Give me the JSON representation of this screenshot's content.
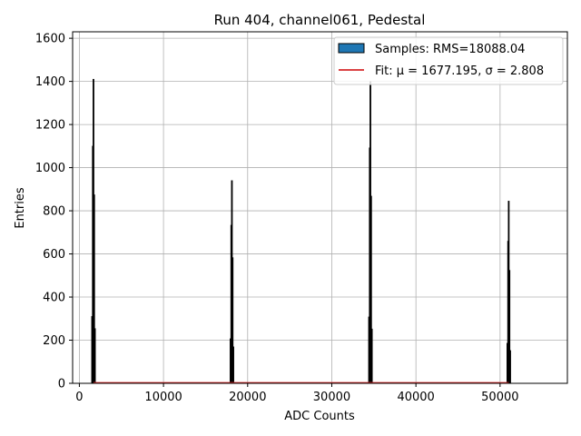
{
  "chart_data": {
    "type": "bar",
    "title": "Run 404, channel061, Pedestal",
    "xlabel": "ADC Counts",
    "ylabel": "Entries",
    "xlim": [
      -800,
      58000
    ],
    "ylim": [
      0,
      1630
    ],
    "xticks": [
      0,
      10000,
      20000,
      30000,
      40000,
      50000
    ],
    "yticks": [
      0,
      200,
      400,
      600,
      800,
      1000,
      1200,
      1400,
      1600
    ],
    "grid": true,
    "legend_position": "top-right",
    "series": [
      {
        "name": "Samples: RMS=18088.04",
        "kind": "histogram",
        "color": "#1f77b4",
        "edge_color": "#000000",
        "peaks": [
          {
            "center": 1677,
            "height": 1410
          },
          {
            "center": 18130,
            "height": 940
          },
          {
            "center": 34590,
            "height": 1400
          },
          {
            "center": 51030,
            "height": 845
          }
        ]
      },
      {
        "name": "Fit: μ = 1677.195, σ = 2.808",
        "kind": "line",
        "color": "#d62728",
        "x": [
          1677,
          51030
        ],
        "y": [
          2,
          2
        ]
      }
    ]
  }
}
